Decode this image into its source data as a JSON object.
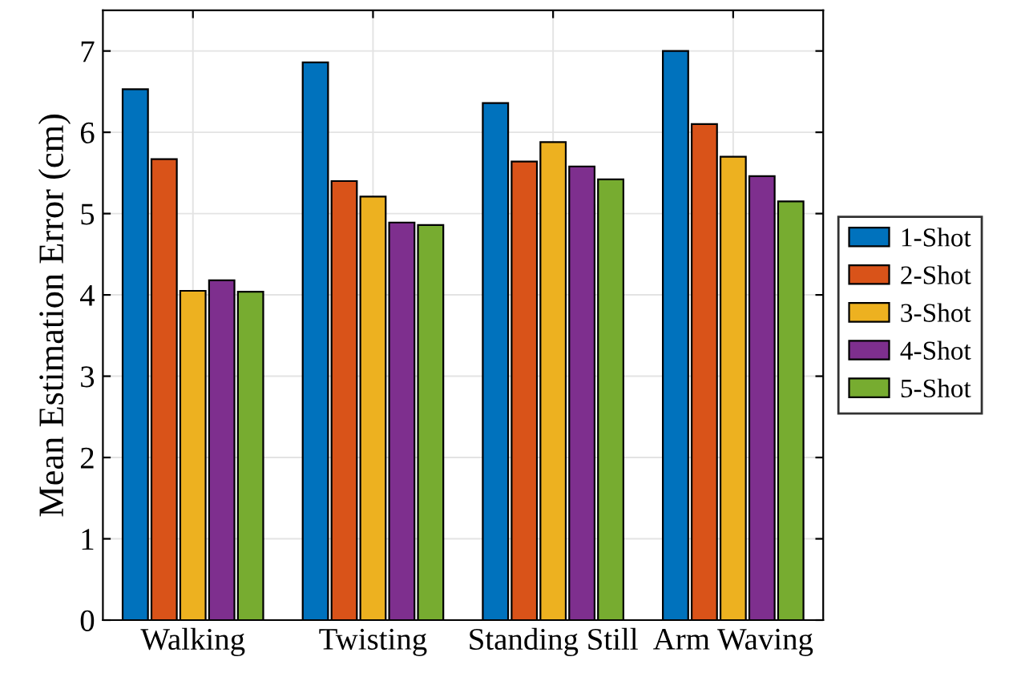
{
  "chart_data": {
    "type": "bar",
    "ylabel": "Mean Estimation Error (cm)",
    "categories": [
      "Walking",
      "Twisting",
      "Standing Still",
      "Arm Waving"
    ],
    "series": [
      {
        "name": "1-Shot",
        "color": "#0072bd",
        "values": [
          6.53,
          6.86,
          6.36,
          7.0
        ]
      },
      {
        "name": "2-Shot",
        "color": "#d95319",
        "values": [
          5.67,
          5.4,
          5.64,
          6.1
        ]
      },
      {
        "name": "3-Shot",
        "color": "#edb120",
        "values": [
          4.05,
          5.21,
          5.88,
          5.7
        ]
      },
      {
        "name": "4-Shot",
        "color": "#7e2f8e",
        "values": [
          4.18,
          4.89,
          5.58,
          5.46
        ]
      },
      {
        "name": "5-Shot",
        "color": "#77ac30",
        "values": [
          4.04,
          4.86,
          5.42,
          5.15
        ]
      }
    ],
    "ylim": [
      0,
      7.5
    ],
    "yticks": [
      0,
      1,
      2,
      3,
      4,
      5,
      6,
      7
    ],
    "grid": true,
    "legend": "right"
  }
}
